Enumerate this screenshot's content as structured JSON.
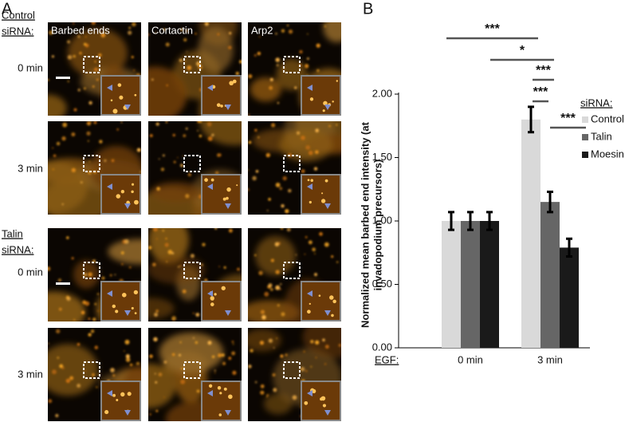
{
  "panel_a": {
    "label": "A",
    "columns": [
      "Barbed ends",
      "Cortactin",
      "Arp2"
    ],
    "groups": [
      {
        "label": [
          "Control",
          "siRNA:"
        ],
        "rows": [
          "0 min",
          "3 min"
        ]
      },
      {
        "label": [
          "Talin",
          "siRNA:"
        ],
        "rows": [
          "0 min",
          "3 min"
        ]
      }
    ]
  },
  "chart_data": {
    "type": "bar",
    "panel_label": "B",
    "ylabel": [
      "Normalized mean barbed end intensity (at",
      "invadopodium precursors)"
    ],
    "xlabel": "EGF:",
    "categories": [
      "0 min",
      "3 min"
    ],
    "legend_title": "siRNA:",
    "series": [
      {
        "name": "Control",
        "color": "#d9d9d9",
        "values": [
          1.0,
          1.8
        ],
        "errors": [
          0.07,
          0.1
        ]
      },
      {
        "name": "Talin",
        "color": "#666666",
        "values": [
          1.0,
          1.15
        ],
        "errors": [
          0.07,
          0.08
        ]
      },
      {
        "name": "Moesin",
        "color": "#1a1a1a",
        "values": [
          1.0,
          0.79
        ],
        "errors": [
          0.07,
          0.07
        ]
      }
    ],
    "ylim": [
      0,
      2.0
    ],
    "yticks": [
      {
        "value": 0,
        "label": "0.00"
      },
      {
        "value": 0.5,
        "label": "0.50"
      },
      {
        "value": 1.0,
        "label": "1.00"
      },
      {
        "value": 1.5,
        "label": "1.50"
      },
      {
        "value": 2.0,
        "label": "2.00"
      }
    ],
    "annotations": [
      "***",
      "*",
      "***",
      "***",
      "***"
    ]
  }
}
